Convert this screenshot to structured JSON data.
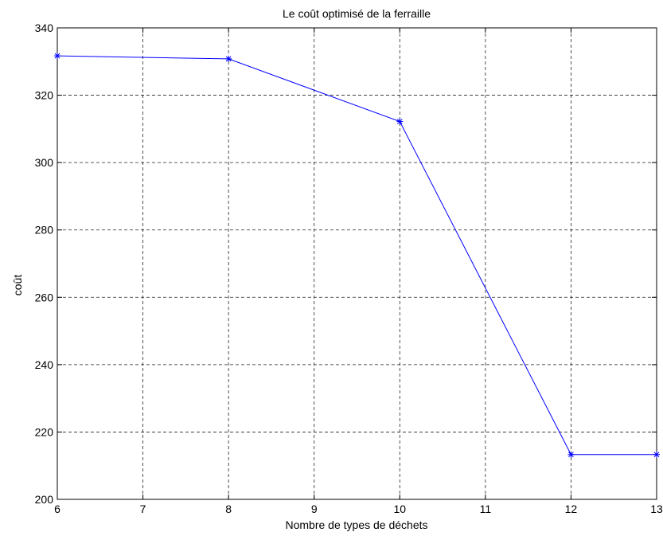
{
  "chart_data": {
    "type": "line",
    "title": "Le coût optimisé de la ferraille",
    "xlabel": "Nombre de types de déchets",
    "ylabel": "coût",
    "xlim": [
      6,
      13
    ],
    "ylim": [
      200,
      340
    ],
    "xticks": [
      6,
      7,
      8,
      9,
      10,
      11,
      12,
      13
    ],
    "yticks": [
      200,
      220,
      240,
      260,
      280,
      300,
      320,
      340
    ],
    "grid": true,
    "series": [
      {
        "x": [
          6,
          8,
          10,
          12,
          13
        ],
        "y": [
          331.7,
          330.8,
          312.2,
          213.3,
          213.3
        ],
        "color": "#0000ff",
        "marker": "asterisk"
      }
    ]
  }
}
